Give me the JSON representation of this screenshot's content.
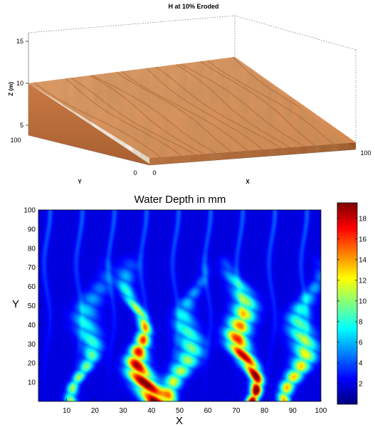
{
  "chart_data": [
    {
      "type": "surface",
      "title": "H at 10% Eroded",
      "xlabel": "X",
      "ylabel": "Y",
      "zlabel": "Z (m)",
      "x_ticks": [
        "0",
        "100"
      ],
      "y_ticks": [
        "0",
        "100"
      ],
      "z_ticks": [
        "5",
        "10",
        "15"
      ],
      "xlim": [
        0,
        100
      ],
      "ylim": [
        0,
        100
      ],
      "zlim": [
        4,
        15
      ],
      "surface": {
        "z_at_y100": 10,
        "z_at_y0": 4.6,
        "color": "#d98a55"
      }
    },
    {
      "type": "heatmap",
      "title": "Water Depth in mm",
      "xlabel": "X",
      "ylabel": "Y",
      "x_ticks": [
        "10",
        "20",
        "30",
        "40",
        "50",
        "60",
        "70",
        "80",
        "90",
        "100"
      ],
      "y_ticks": [
        "10",
        "20",
        "30",
        "40",
        "50",
        "60",
        "70",
        "80",
        "90",
        "100"
      ],
      "xlim": [
        0,
        100
      ],
      "ylim": [
        0,
        100
      ],
      "colorbar_ticks": [
        "2",
        "4",
        "6",
        "8",
        "10",
        "12",
        "14",
        "16",
        "18"
      ],
      "colorbar_range": [
        0,
        19.5
      ],
      "colormap": "jet",
      "channels": [
        {
          "x": 17,
          "peak": 9
        },
        {
          "x": 36,
          "peak": 19
        },
        {
          "x": 52,
          "peak": 10
        },
        {
          "x": 73,
          "peak": 20
        },
        {
          "x": 93,
          "peak": 12
        }
      ]
    }
  ]
}
